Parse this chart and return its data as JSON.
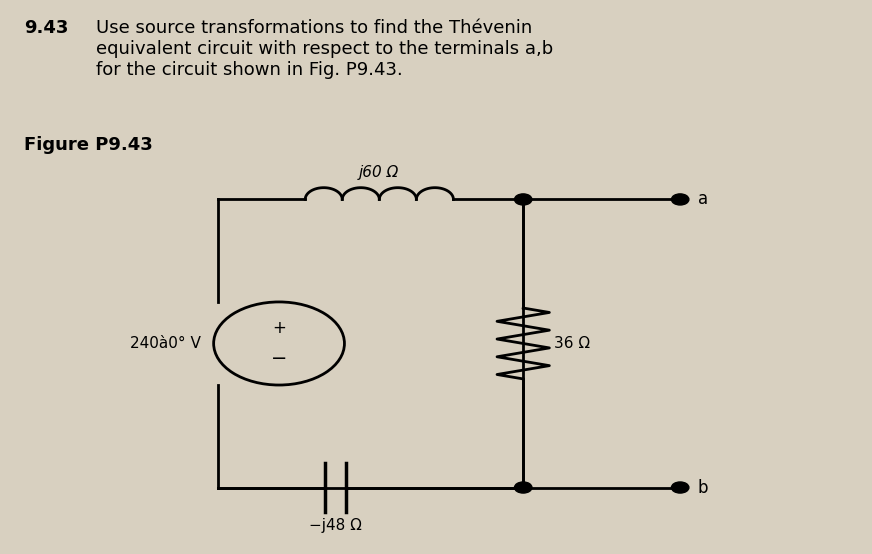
{
  "title_number": "9.43",
  "title_text": "Use source transformations to find the Thévenin\nequivalent circuit with respect to the terminals a,b\nfor the circuit shown in Fig. P9.43.",
  "figure_label": "Figure P9.43",
  "bg_color": "#d8d0c0",
  "source_label": "240à0° V",
  "inductor_label": "j60 Ω",
  "capacitor_label": "−j48 Ω",
  "resistor_label": "36 Ω",
  "terminal_a": "a",
  "terminal_b": "b"
}
